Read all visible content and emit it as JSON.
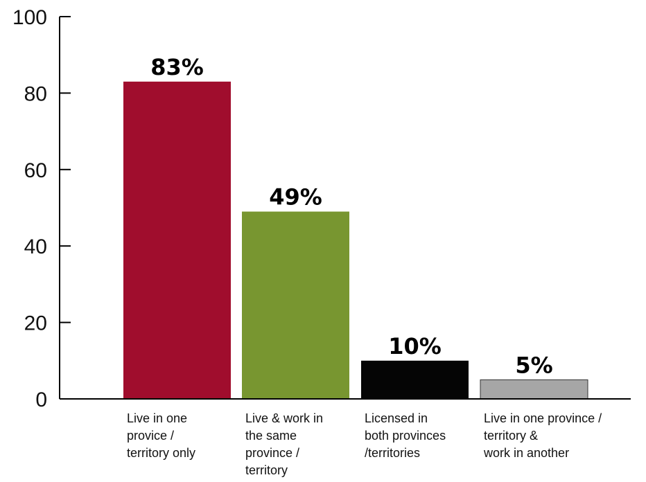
{
  "chart_data": {
    "type": "bar",
    "categories": [
      [
        "Live in one",
        "provice /",
        "territory only"
      ],
      [
        "Live & work in",
        "the same",
        "province /",
        "territory"
      ],
      [
        "Licensed in",
        "both provinces",
        "/territories"
      ],
      [
        "Live in one province /",
        "territory &",
        "work in another"
      ]
    ],
    "values": [
      83,
      49,
      10,
      5
    ],
    "data_labels": [
      "83%",
      "49%",
      "10%",
      "5%"
    ],
    "colors": [
      "#a00d2d",
      "#789630",
      "#050505",
      "#a6a6a6"
    ],
    "y_ticks": [
      0,
      20,
      40,
      60,
      80,
      100
    ],
    "ylim": [
      0,
      100
    ],
    "grid": false,
    "title": "",
    "xlabel": "",
    "ylabel": ""
  }
}
